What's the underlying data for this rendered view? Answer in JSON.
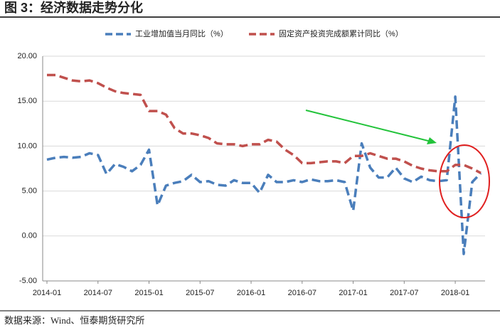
{
  "chart_data": {
    "type": "line",
    "title": "图 3：经济数据走势分化",
    "source": "数据来源：Wind、恒泰期货研究所",
    "categories": [
      "2014-01",
      null,
      null,
      null,
      null,
      null,
      "2014-07",
      null,
      null,
      null,
      null,
      null,
      "2015-01",
      null,
      null,
      null,
      null,
      null,
      "2015-07",
      null,
      null,
      null,
      null,
      null,
      "2016-01",
      null,
      null,
      null,
      null,
      null,
      "2016-07",
      null,
      null,
      null,
      null,
      null,
      "2017-01",
      null,
      null,
      null,
      null,
      null,
      "2017-07",
      null,
      null,
      null,
      null,
      null,
      "2018-01",
      null,
      null,
      null
    ],
    "series": [
      {
        "name": "工业增加值当月同比（%）",
        "color": "#4a7ebb",
        "values": [
          8.5,
          8.7,
          8.8,
          8.7,
          8.8,
          9.2,
          9.0,
          6.9,
          8.0,
          7.7,
          7.2,
          7.9,
          9.6,
          3.4,
          5.6,
          5.9,
          6.1,
          6.8,
          6.0,
          6.1,
          5.7,
          5.6,
          6.2,
          5.9,
          5.9,
          4.8,
          6.8,
          6.0,
          6.0,
          6.2,
          6.0,
          6.3,
          6.1,
          6.1,
          6.2,
          6.0,
          2.8,
          10.3,
          7.6,
          6.5,
          6.5,
          7.6,
          6.4,
          6.0,
          6.6,
          6.2,
          6.1,
          6.2,
          15.5,
          -2.0,
          6.0,
          7.0
        ]
      },
      {
        "name": "固定资产投资完成额累计同比（%）",
        "color": "#c0504d",
        "values": [
          17.9,
          17.9,
          17.6,
          17.3,
          17.2,
          17.3,
          17.0,
          16.5,
          16.1,
          15.9,
          15.8,
          15.7,
          13.9,
          13.9,
          13.5,
          12.0,
          11.4,
          11.4,
          11.2,
          10.9,
          10.3,
          10.2,
          10.2,
          10.0,
          10.2,
          10.2,
          10.7,
          10.5,
          9.6,
          9.0,
          8.1,
          8.1,
          8.2,
          8.3,
          8.3,
          8.1,
          8.9,
          8.9,
          9.2,
          8.9,
          8.6,
          8.6,
          8.3,
          7.8,
          7.5,
          7.3,
          7.2,
          7.2,
          7.9,
          7.9,
          7.5,
          7.0
        ]
      }
    ],
    "ylim": [
      -5,
      20
    ],
    "yticks": [
      {
        "value": -5,
        "label": "-5.00"
      },
      {
        "value": 0,
        "label": "0.00"
      },
      {
        "value": 5,
        "label": "5.00"
      },
      {
        "value": 10,
        "label": "10.00"
      },
      {
        "value": 15,
        "label": "15.00"
      },
      {
        "value": 20,
        "label": "20.00"
      }
    ],
    "grid": true
  }
}
